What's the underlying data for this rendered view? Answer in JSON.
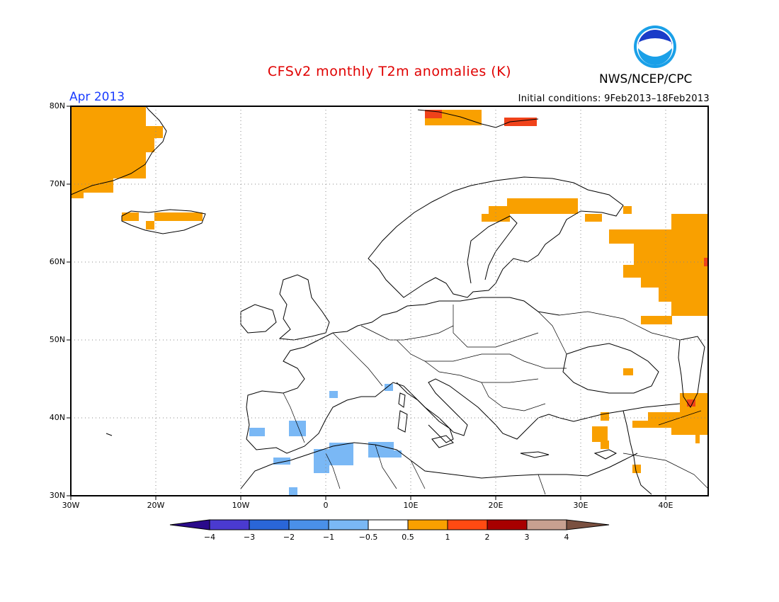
{
  "header": {
    "title": "CFSv2 monthly T2m anomalies (K)",
    "agency": "NWS/NCEP/CPC",
    "logo_text": "NOAA",
    "month": "Apr 2013",
    "initial_conditions": "Initial conditions: 9Feb2013–18Feb2013"
  },
  "map": {
    "lat_labels": [
      "80N",
      "70N",
      "60N",
      "50N",
      "40N",
      "30N"
    ],
    "lon_labels": [
      "30W",
      "20W",
      "10W",
      "0",
      "10E",
      "20E",
      "30E",
      "40E"
    ],
    "extent": {
      "lon_min": -30,
      "lon_max": 45,
      "lat_min": 30,
      "lat_max": 80
    }
  },
  "colorbar": {
    "tick_labels": [
      "−4",
      "−3",
      "−2",
      "−1",
      "−0.5",
      "0.5",
      "1",
      "2",
      "3",
      "4"
    ],
    "colors": [
      "#2a0a8a",
      "#4a3ad0",
      "#2a66d8",
      "#4a90e8",
      "#7ab8f5",
      "#ffffff",
      "#f9a000",
      "#ff4a12",
      "#a80000",
      "#c8a090",
      "#7a5040"
    ]
  },
  "anomaly_colors": {
    "warm1": "#f9a000",
    "warm2": "#f0421a",
    "cool1": "#7ab8f5",
    "cool2": "#4a90e8"
  }
}
